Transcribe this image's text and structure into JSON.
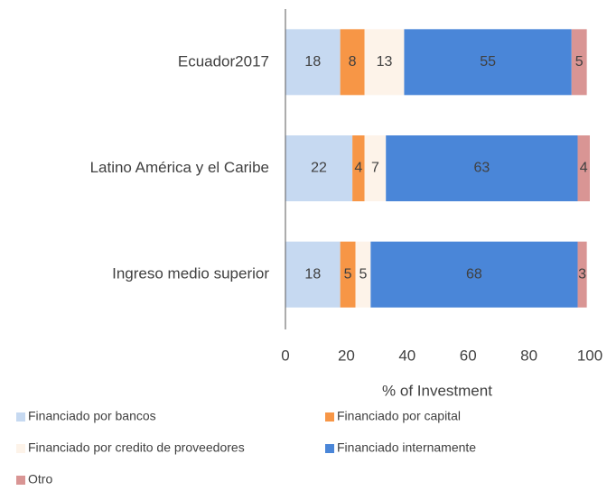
{
  "chart_data": {
    "type": "bar",
    "orientation": "horizontal",
    "stacked": true,
    "xlabel": "% of Investment",
    "categories": [
      "Ecuador2017",
      "Latino América y el Caribe",
      "Ingreso medio superior"
    ],
    "series": [
      {
        "name": "Financiado por bancos",
        "color": "#c6d9f1",
        "values": [
          18,
          22,
          18
        ]
      },
      {
        "name": "Financiado por capital",
        "color": "#f79646",
        "values": [
          8,
          4,
          5
        ]
      },
      {
        "name": "Financiado por credito de proveedores",
        "color": "#fdf3e9",
        "values": [
          13,
          7,
          5
        ]
      },
      {
        "name": "Financiado internamente",
        "color": "#4a86d8",
        "values": [
          55,
          63,
          68
        ]
      },
      {
        "name": "Otro",
        "color": "#d99594",
        "values": [
          5,
          4,
          3
        ]
      }
    ],
    "xlim": [
      0,
      100
    ],
    "xticks": [
      0,
      20,
      40,
      60,
      80,
      100
    ],
    "grid": false,
    "legend": "bottom",
    "data_labels": true
  }
}
